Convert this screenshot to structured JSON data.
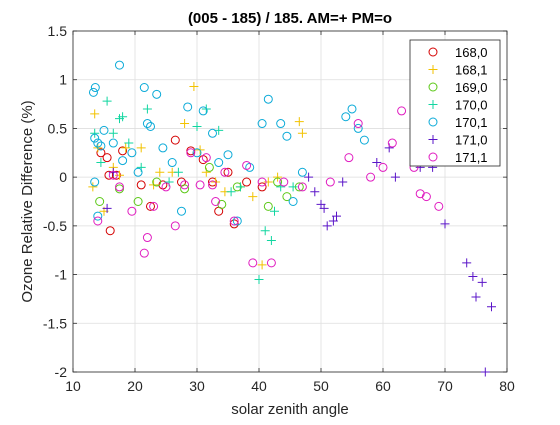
{
  "chart_data": {
    "type": "scatter",
    "title": "(005 - 185) / 185.  AM=+ PM=o",
    "xlabel": "solar zenith angle",
    "ylabel": "Ozone Relative Difference (%)",
    "xlim": [
      10,
      80
    ],
    "ylim": [
      -2,
      1.5
    ],
    "xticks": [
      10,
      20,
      30,
      40,
      50,
      60,
      70,
      80
    ],
    "yticks": [
      -2,
      -1.5,
      -1,
      -0.5,
      0,
      0.5,
      1,
      1.5
    ],
    "xtick_labels": [
      "10",
      "20",
      "30",
      "40",
      "50",
      "60",
      "70",
      "80"
    ],
    "ytick_labels": [
      "-2",
      "-1.5",
      "-1",
      "-0.5",
      "0",
      "0.5",
      "1",
      "1.5"
    ],
    "grid": true,
    "legend_position": "top-right",
    "series": [
      {
        "name": "168,0",
        "marker": "o",
        "color": "#d40000",
        "points": [
          [
            14.5,
            0.25
          ],
          [
            15.5,
            0.2
          ],
          [
            16,
            -0.55
          ],
          [
            15.8,
            0.02
          ],
          [
            17,
            0.02
          ],
          [
            18,
            0.27
          ],
          [
            21,
            -0.08
          ],
          [
            22.5,
            -0.3
          ],
          [
            24.5,
            -0.08
          ],
          [
            26.5,
            0.38
          ],
          [
            27.5,
            -0.05
          ],
          [
            29,
            0.27
          ],
          [
            31,
            0.18
          ],
          [
            32.5,
            -0.05
          ],
          [
            33.5,
            -0.35
          ],
          [
            35,
            0.05
          ],
          [
            36,
            -0.48
          ],
          [
            38,
            -0.05
          ],
          [
            40.5,
            -0.1
          ]
        ]
      },
      {
        "name": "168,1",
        "marker": "+",
        "color": "#f2c200",
        "points": [
          [
            13.5,
            0.65
          ],
          [
            14,
            0.3
          ],
          [
            13.2,
            -0.1
          ],
          [
            16.5,
            0.1
          ],
          [
            17.5,
            0.02
          ],
          [
            15,
            -0.35
          ],
          [
            18.5,
            0.3
          ],
          [
            21,
            0.3
          ],
          [
            23,
            -0.08
          ],
          [
            24,
            0.05
          ],
          [
            26,
            0.05
          ],
          [
            28,
            0.55
          ],
          [
            29.5,
            0.93
          ],
          [
            30.5,
            0.28
          ],
          [
            31.5,
            0.05
          ],
          [
            33,
            -0.05
          ],
          [
            34.5,
            -0.15
          ],
          [
            37,
            -0.1
          ],
          [
            39,
            -0.2
          ],
          [
            40.5,
            -0.9
          ],
          [
            41.5,
            -0.05
          ],
          [
            43,
            0
          ],
          [
            46.5,
            0.57
          ],
          [
            47,
            0.45
          ]
        ]
      },
      {
        "name": "169,0",
        "marker": "o",
        "color": "#5bc816",
        "points": [
          [
            14.3,
            -0.25
          ],
          [
            17.5,
            -0.12
          ],
          [
            20.5,
            -0.25
          ],
          [
            23.5,
            -0.05
          ],
          [
            28,
            -0.12
          ],
          [
            32,
            0.1
          ],
          [
            34,
            -0.28
          ],
          [
            36.5,
            -0.1
          ],
          [
            41.5,
            -0.3
          ],
          [
            43,
            -0.05
          ],
          [
            44.5,
            -0.2
          ],
          [
            46.5,
            -0.1
          ]
        ]
      },
      {
        "name": "170,0",
        "marker": "+",
        "color": "#11d6a0",
        "points": [
          [
            13.5,
            0.45
          ],
          [
            14.5,
            0.15
          ],
          [
            15.5,
            0.78
          ],
          [
            16.5,
            0.45
          ],
          [
            17.5,
            0.6
          ],
          [
            18,
            0.62
          ],
          [
            19,
            0.35
          ],
          [
            21,
            0.1
          ],
          [
            22,
            0.7
          ],
          [
            25.5,
            -0.05
          ],
          [
            27,
            0.05
          ],
          [
            30,
            0.52
          ],
          [
            31.5,
            0.7
          ],
          [
            33.5,
            0.48
          ],
          [
            35.5,
            -0.15
          ],
          [
            37,
            -0.1
          ],
          [
            40,
            -1.05
          ],
          [
            41,
            -0.55
          ],
          [
            42,
            -0.65
          ],
          [
            42.5,
            -0.35
          ],
          [
            43.5,
            -0.1
          ],
          [
            45.5,
            -0.1
          ]
        ]
      },
      {
        "name": "170,1",
        "marker": "o",
        "color": "#0aaad8",
        "points": [
          [
            13.3,
            0.87
          ],
          [
            13.6,
            0.92
          ],
          [
            13.5,
            0.4
          ],
          [
            14,
            0.35
          ],
          [
            14.5,
            0.32
          ],
          [
            15,
            0.48
          ],
          [
            16.5,
            0.35
          ],
          [
            17.5,
            1.15
          ],
          [
            18,
            0.17
          ],
          [
            19.5,
            0.25
          ],
          [
            20.5,
            0.05
          ],
          [
            21.5,
            0.92
          ],
          [
            22,
            0.55
          ],
          [
            22.5,
            0.52
          ],
          [
            23.5,
            0.85
          ],
          [
            24.5,
            0.3
          ],
          [
            26,
            0.15
          ],
          [
            27.5,
            -0.35
          ],
          [
            28.5,
            0.72
          ],
          [
            30,
            0.25
          ],
          [
            31,
            0.68
          ],
          [
            32.5,
            0.45
          ],
          [
            33.5,
            0.15
          ],
          [
            35,
            0.23
          ],
          [
            36.5,
            -0.45
          ],
          [
            38.5,
            0.1
          ],
          [
            40.5,
            0.55
          ],
          [
            41.5,
            0.8
          ],
          [
            43.5,
            0.55
          ],
          [
            44.5,
            0.42
          ],
          [
            45.5,
            -0.25
          ],
          [
            47,
            0.05
          ],
          [
            54,
            0.62
          ],
          [
            55,
            0.7
          ],
          [
            56,
            0.5
          ],
          [
            57,
            0.38
          ],
          [
            13.5,
            -0.05
          ],
          [
            14,
            -0.4
          ]
        ]
      },
      {
        "name": "171,0",
        "marker": "+",
        "color": "#5a14c8",
        "points": [
          [
            15.5,
            -0.32
          ],
          [
            16.5,
            0.05
          ],
          [
            48,
            0
          ],
          [
            49,
            -0.15
          ],
          [
            50,
            -0.28
          ],
          [
            50.5,
            -0.32
          ],
          [
            51,
            -0.5
          ],
          [
            52,
            -0.45
          ],
          [
            52.5,
            -0.4
          ],
          [
            53.5,
            -0.05
          ],
          [
            59,
            0.15
          ],
          [
            61,
            0.3
          ],
          [
            62,
            0
          ],
          [
            66,
            0.1
          ],
          [
            68,
            0.1
          ],
          [
            70,
            -0.48
          ],
          [
            73.5,
            -0.88
          ],
          [
            74.5,
            -1.02
          ],
          [
            75,
            -1.23
          ],
          [
            76,
            -1.08
          ],
          [
            76.5,
            -2.0
          ],
          [
            77.5,
            -1.33
          ]
        ]
      },
      {
        "name": "171,1",
        "marker": "o",
        "color": "#e01bc0",
        "points": [
          [
            14,
            -0.45
          ],
          [
            16.5,
            0.02
          ],
          [
            17.5,
            -0.1
          ],
          [
            19.5,
            -0.35
          ],
          [
            21.5,
            -0.78
          ],
          [
            22,
            -0.62
          ],
          [
            23,
            -0.3
          ],
          [
            25,
            -0.1
          ],
          [
            26.5,
            -0.5
          ],
          [
            28,
            -0.08
          ],
          [
            29,
            0.25
          ],
          [
            30.5,
            -0.08
          ],
          [
            31.5,
            0.2
          ],
          [
            32.5,
            -0.08
          ],
          [
            33,
            -0.25
          ],
          [
            34.5,
            0.05
          ],
          [
            36,
            -0.45
          ],
          [
            38,
            0.12
          ],
          [
            39,
            -0.88
          ],
          [
            40.5,
            -0.05
          ],
          [
            42,
            -0.88
          ],
          [
            44,
            -0.05
          ],
          [
            47,
            -0.1
          ],
          [
            51.5,
            -0.05
          ],
          [
            54.5,
            0.2
          ],
          [
            56,
            0.55
          ],
          [
            58,
            0
          ],
          [
            60,
            0.1
          ],
          [
            61.5,
            0.35
          ],
          [
            63,
            0.68
          ],
          [
            65,
            0.1
          ],
          [
            66,
            -0.17
          ],
          [
            67,
            -0.2
          ],
          [
            69,
            -0.3
          ],
          [
            70,
            0.22
          ]
        ]
      }
    ]
  }
}
